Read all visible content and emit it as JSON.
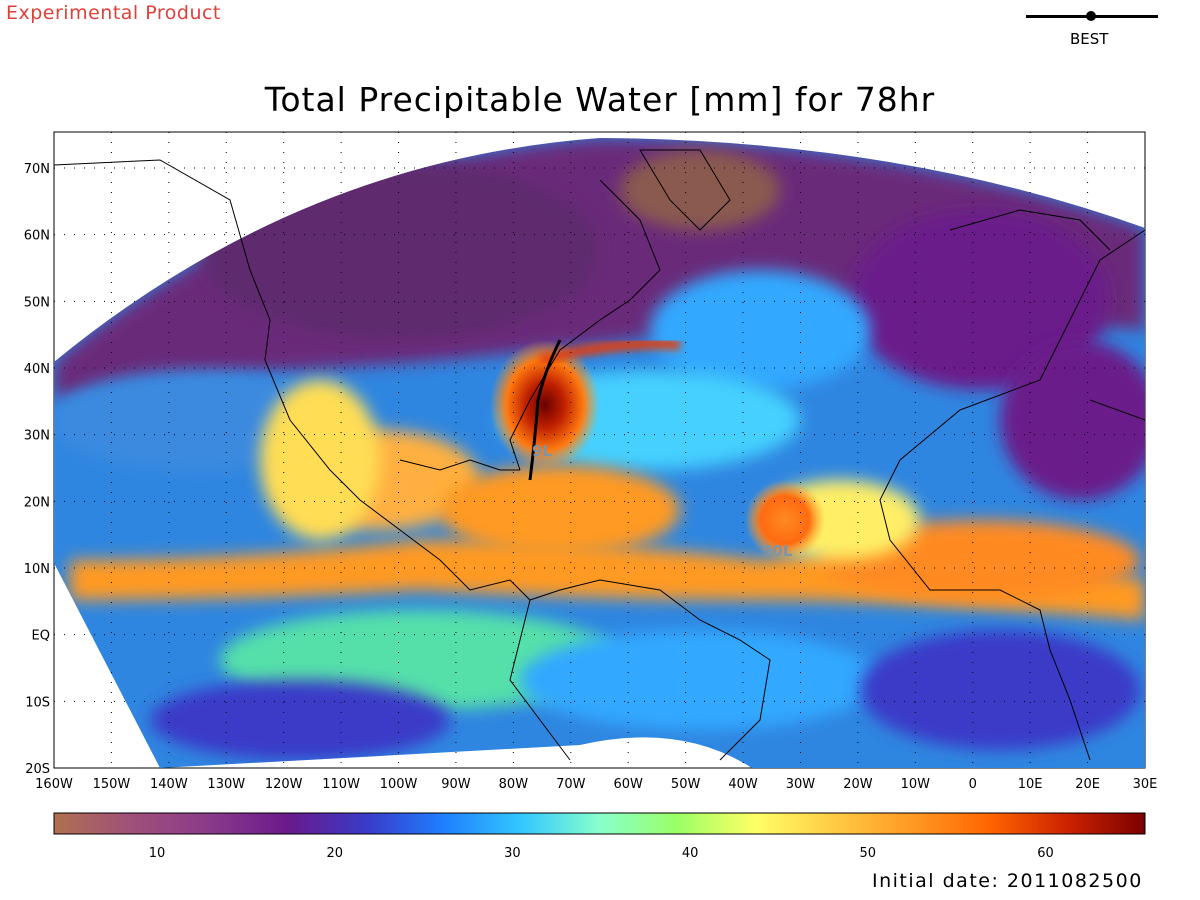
{
  "header": {
    "product_label": "Experimental Product",
    "best_label": "BEST",
    "title": "Total Precipitable Water [mm] for 78hr"
  },
  "map": {
    "lat_labels": [
      "70N",
      "60N",
      "50N",
      "40N",
      "30N",
      "20N",
      "10N",
      "EQ",
      "10S",
      "20S"
    ],
    "lon_labels": [
      "160W",
      "150W",
      "140W",
      "130W",
      "120W",
      "110W",
      "100W",
      "90W",
      "80W",
      "70W",
      "60W",
      "50W",
      "40W",
      "30W",
      "20W",
      "10W",
      "0",
      "10E",
      "20E",
      "30E"
    ],
    "storm_labels": [
      "9L",
      "90L"
    ],
    "storm_color": "#7f95a6"
  },
  "colorbar": {
    "tick_labels": [
      "10",
      "20",
      "30",
      "40",
      "50",
      "60"
    ],
    "stops": [
      "#b07050",
      "#a0507a",
      "#8a3a8a",
      "#6a1a8a",
      "#3a3ac8",
      "#1f7fff",
      "#33c8ff",
      "#88ffcc",
      "#9bff66",
      "#ffff66",
      "#ffcc44",
      "#ff9a22",
      "#ff6600",
      "#cc2200",
      "#7a0000"
    ]
  },
  "footer": {
    "initial_date": "Initial date: 2011082500"
  }
}
